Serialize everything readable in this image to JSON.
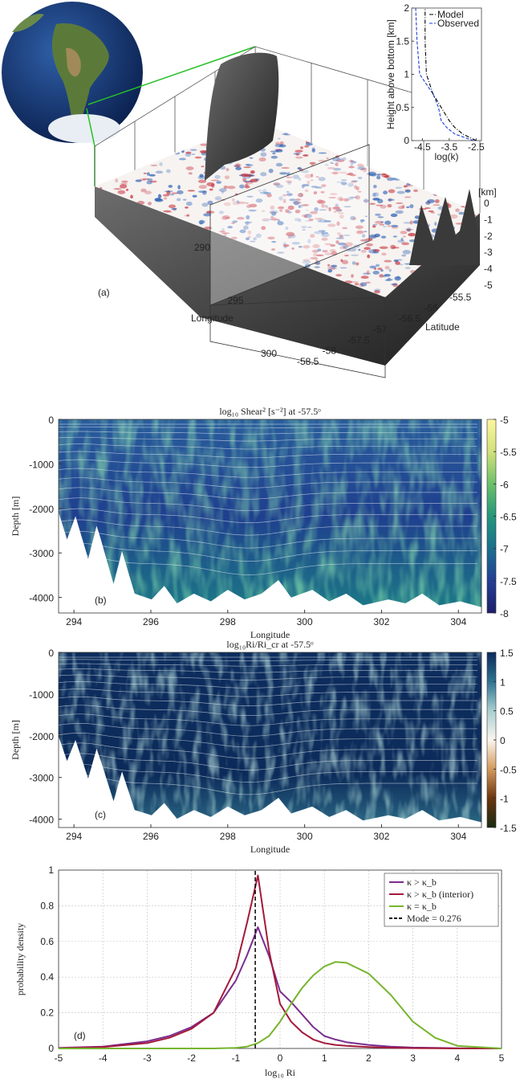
{
  "panel_a": {
    "label": "(a)",
    "x_label": "Longitude",
    "x_ticks": [
      290,
      295,
      300
    ],
    "y_label": "Latitude",
    "y_ticks": [
      -55.5,
      -56,
      -56.5,
      -57,
      -57.5,
      -58,
      -58.5
    ],
    "z_label": "[km]",
    "z_ticks": [
      0,
      -1,
      -2,
      -3,
      -4,
      -5
    ]
  },
  "chart_data": [
    {
      "type": "profile",
      "xlabel": "log(k)",
      "ylabel": "Height above bottom [km]",
      "xlim": [
        -4.9,
        -2.3
      ],
      "xticks": [
        -4.5,
        -3.5,
        -2.5
      ],
      "ylim": [
        0,
        2
      ],
      "yticks": [
        0,
        0.5,
        1,
        1.5,
        2
      ],
      "series": [
        {
          "name": "Model",
          "color": "#000000",
          "dash": "dashdot",
          "x": [
            -2.5,
            -3.0,
            -3.3,
            -3.5,
            -3.8,
            -4.1,
            -4.35,
            -4.4,
            -4.4
          ],
          "y": [
            0,
            0.1,
            0.2,
            0.3,
            0.5,
            0.7,
            1,
            1.5,
            2
          ]
        },
        {
          "name": "Observed",
          "color": "#1f3fd0",
          "dash": "dashed",
          "x": [
            -2.6,
            -3.3,
            -3.6,
            -3.8,
            -3.9,
            -4.1,
            -4.6,
            -4.7,
            -4.75
          ],
          "y": [
            0,
            0.1,
            0.2,
            0.3,
            0.5,
            0.7,
            1,
            1.5,
            2
          ]
        }
      ]
    },
    {
      "type": "heatmap",
      "panel_label": "(b)",
      "title": "log₁₀ Shear² [s⁻²] at -57.5ᵒ",
      "xlabel": "Longitude",
      "ylabel": "Depth [m]",
      "xlim": [
        293.6,
        304.6
      ],
      "xticks": [
        294,
        296,
        298,
        300,
        302,
        304
      ],
      "ylim": [
        -4350,
        0
      ],
      "yticks": [
        -4000,
        -3000,
        -2000,
        -1000,
        0
      ],
      "clim": [
        -8,
        -5
      ],
      "cticks": [
        -8,
        -7.5,
        -7,
        -6.5,
        -6,
        -5.5,
        -5
      ],
      "colormap": [
        "#1d1f6b",
        "#233f95",
        "#1b6f8e",
        "#24977c",
        "#6cc06a",
        "#d2e27a",
        "#fdf5a0"
      ]
    },
    {
      "type": "heatmap",
      "panel_label": "(c)",
      "title": "log₁₀Ri/Ri_cr at -57.5ᵒ",
      "xlabel": "Longitude",
      "ylabel": "Depth [m]",
      "xlim": [
        293.6,
        304.6
      ],
      "xticks": [
        294,
        296,
        298,
        300,
        302,
        304
      ],
      "ylim": [
        -4200,
        0
      ],
      "yticks": [
        -4000,
        -3000,
        -2000,
        -1000,
        0
      ],
      "clim": [
        -1.5,
        1.5
      ],
      "cticks": [
        -1.5,
        -1,
        -0.5,
        0,
        0.5,
        1,
        1.5
      ],
      "colormap": [
        "#1a2a12",
        "#6b3510",
        "#d39a5c",
        "#fbf6ee",
        "#a9cfd0",
        "#2f7391",
        "#0b2a5c"
      ]
    },
    {
      "type": "line",
      "panel_label": "(d)",
      "xlabel": "log₁₀ Ri",
      "ylabel": "probability density",
      "xlim": [
        -5,
        5
      ],
      "xticks": [
        -5,
        -4,
        -3,
        -2,
        -1,
        0,
        1,
        2,
        3,
        4,
        5
      ],
      "ylim": [
        0,
        1
      ],
      "yticks": [
        0,
        0.2,
        0.4,
        0.6,
        0.8,
        1
      ],
      "grid": true,
      "legend": "top-right",
      "x": [
        -5,
        -4,
        -3,
        -2.5,
        -2,
        -1.5,
        -1,
        -0.75,
        -0.5,
        -0.25,
        0,
        0.25,
        0.5,
        0.75,
        1,
        1.25,
        1.5,
        2,
        2.5,
        3,
        3.5,
        4,
        5
      ],
      "series": [
        {
          "name": "κ > κ_b",
          "color": "#7a2d8e",
          "values": [
            0.003,
            0.01,
            0.04,
            0.07,
            0.12,
            0.2,
            0.38,
            0.52,
            0.68,
            0.52,
            0.32,
            0.26,
            0.19,
            0.12,
            0.07,
            0.05,
            0.035,
            0.02,
            0.01,
            0.005,
            0.003,
            0.001,
            0
          ]
        },
        {
          "name": "κ > κ_b (interior)",
          "color": "#a3193a",
          "values": [
            0.002,
            0.008,
            0.03,
            0.06,
            0.11,
            0.2,
            0.45,
            0.7,
            0.97,
            0.55,
            0.25,
            0.15,
            0.09,
            0.05,
            0.03,
            0.02,
            0.015,
            0.008,
            0.004,
            0.002,
            0.001,
            0,
            0
          ]
        },
        {
          "name": "κ = κ_b",
          "color": "#77b52e",
          "values": [
            0,
            0,
            0,
            0,
            0,
            0,
            0.003,
            0.01,
            0.03,
            0.07,
            0.15,
            0.25,
            0.34,
            0.41,
            0.46,
            0.485,
            0.48,
            0.42,
            0.3,
            0.15,
            0.06,
            0.015,
            0
          ]
        }
      ],
      "vline": {
        "name": "Mode = 0.276",
        "x": -0.56,
        "color": "#000000"
      }
    }
  ]
}
